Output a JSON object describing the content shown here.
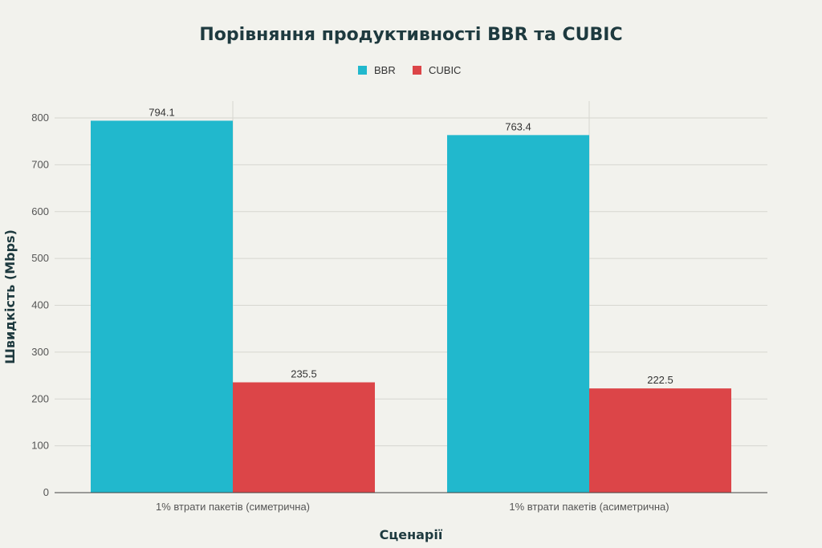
{
  "chart_data": {
    "type": "bar",
    "title": "Порівняння продуктивності BBR та CUBIC",
    "xlabel": "Сценарії",
    "ylabel": "Швидкість (Mbps)",
    "categories": [
      "1% втрати пакетів (симетрична)",
      "1% втрати пакетів (асиметрична)"
    ],
    "series": [
      {
        "name": "BBR",
        "values": [
          794.1,
          763.4
        ],
        "color": "#21b8cd"
      },
      {
        "name": "CUBIC",
        "values": [
          235.5,
          222.5
        ],
        "color": "#dc4548"
      }
    ],
    "data_labels": [
      [
        "794.1",
        "763.4"
      ],
      [
        "235.5",
        "222.5"
      ]
    ],
    "ylim": [
      0,
      800
    ],
    "yticks": [
      0,
      100,
      200,
      300,
      400,
      500,
      600,
      700,
      800
    ],
    "grid": true,
    "legend_position": "top-center"
  }
}
